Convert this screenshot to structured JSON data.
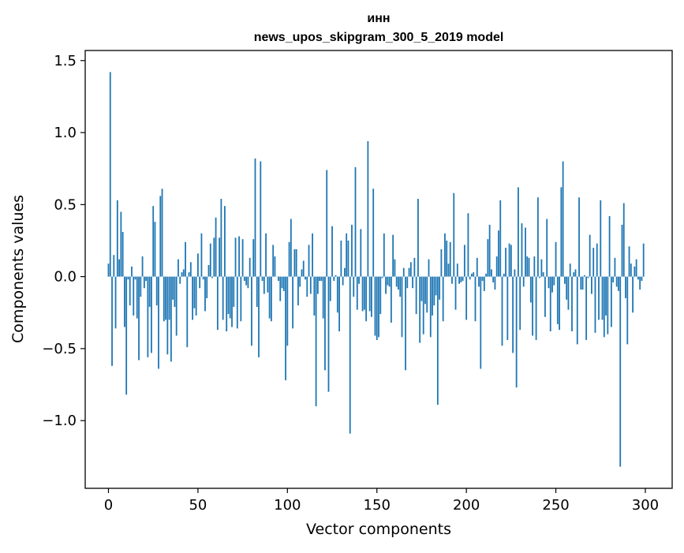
{
  "chart_data": {
    "type": "bar",
    "title_line1": "инн",
    "title_line2": "news_upos_skipgram_300_5_2019 model",
    "xlabel": "Vector components",
    "ylabel": "Components values",
    "xlim": [
      -13,
      315
    ],
    "ylim": [
      -1.47,
      1.57
    ],
    "xticks": [
      0,
      50,
      100,
      150,
      200,
      250,
      300
    ],
    "yticks": [
      1.5,
      1.0,
      0.5,
      0.0,
      -0.5,
      -1.0
    ],
    "ytick_labels": [
      "1.5",
      "1.0",
      "0.5",
      "0.0",
      "−0.5",
      "−1.0"
    ],
    "bar_color": "#1f77b4",
    "grid": false,
    "values": [
      0.09,
      1.42,
      -0.62,
      0.15,
      -0.36,
      0.53,
      0.12,
      0.45,
      0.31,
      -0.35,
      -0.82,
      -0.02,
      -0.2,
      0.07,
      -0.27,
      -0.02,
      -0.29,
      -0.58,
      -0.14,
      0.14,
      -0.08,
      -0.03,
      -0.56,
      -0.21,
      -0.53,
      0.49,
      0.38,
      -0.2,
      -0.64,
      0.56,
      0.61,
      -0.31,
      -0.3,
      -0.54,
      -0.3,
      -0.59,
      -0.16,
      -0.21,
      -0.41,
      0.12,
      -0.05,
      0.03,
      0.05,
      0.24,
      -0.49,
      0.03,
      0.1,
      -0.3,
      -0.22,
      -0.27,
      0.16,
      -0.08,
      0.3,
      -0.02,
      -0.24,
      -0.15,
      0.08,
      0.23,
      -0.01,
      0.27,
      0.41,
      -0.37,
      0.27,
      0.54,
      -0.3,
      0.49,
      -0.38,
      -0.26,
      -0.29,
      -0.35,
      -0.21,
      0.27,
      -0.36,
      0.28,
      -0.31,
      0.26,
      -0.03,
      -0.06,
      -0.08,
      0.13,
      -0.48,
      0.26,
      0.82,
      -0.21,
      -0.56,
      0.8,
      -0.03,
      -0.12,
      0.3,
      -0.11,
      -0.29,
      -0.31,
      0.22,
      0.14,
      0.0,
      -0.03,
      -0.17,
      -0.08,
      -0.1,
      -0.72,
      -0.48,
      0.24,
      0.4,
      -0.36,
      0.19,
      0.19,
      -0.2,
      -0.07,
      0.05,
      0.11,
      -0.02,
      -0.14,
      0.22,
      -0.12,
      0.3,
      -0.27,
      -0.9,
      -0.12,
      -0.03,
      -0.03,
      -0.29,
      -0.65,
      0.74,
      -0.8,
      -0.17,
      0.35,
      -0.03,
      0.01,
      -0.25,
      -0.38,
      0.25,
      -0.06,
      0.06,
      0.3,
      0.25,
      -1.09,
      0.36,
      -0.14,
      0.76,
      -0.23,
      -0.05,
      0.33,
      -0.24,
      -0.23,
      -0.31,
      0.94,
      -0.24,
      -0.28,
      0.61,
      -0.41,
      -0.44,
      -0.42,
      -0.26,
      -0.01,
      0.3,
      -0.12,
      -0.06,
      -0.07,
      -0.32,
      0.29,
      0.12,
      -0.07,
      -0.09,
      -0.14,
      -0.42,
      0.06,
      -0.65,
      -0.08,
      0.06,
      0.1,
      -0.08,
      0.13,
      -0.26,
      0.54,
      -0.46,
      -0.17,
      -0.4,
      -0.19,
      -0.25,
      0.12,
      -0.42,
      -0.27,
      -0.2,
      -0.13,
      -0.89,
      -0.16,
      0.19,
      -0.31,
      0.3,
      0.25,
      0.09,
      0.24,
      -0.05,
      0.58,
      -0.23,
      0.09,
      -0.05,
      -0.04,
      -0.03,
      0.22,
      -0.3,
      0.44,
      -0.02,
      0.02,
      0.03,
      -0.31,
      0.13,
      -0.07,
      -0.64,
      -0.03,
      -0.1,
      0.02,
      0.26,
      0.36,
      0.05,
      -0.04,
      -0.09,
      0.14,
      0.32,
      0.53,
      -0.48,
      0.02,
      0.2,
      -0.44,
      0.23,
      0.22,
      -0.53,
      0.05,
      -0.77,
      0.62,
      -0.37,
      0.37,
      -0.07,
      0.34,
      0.14,
      0.13,
      -0.18,
      -0.41,
      0.14,
      -0.44,
      0.55,
      -0.01,
      0.12,
      0.03,
      -0.28,
      0.4,
      -0.08,
      -0.38,
      -0.11,
      -0.06,
      0.24,
      -0.33,
      -0.37,
      0.62,
      0.8,
      -0.05,
      -0.16,
      -0.23,
      0.09,
      -0.38,
      0.03,
      0.05,
      -0.47,
      0.55,
      -0.09,
      -0.09,
      0.01,
      -0.44,
      -0.01,
      0.29,
      -0.12,
      0.2,
      -0.39,
      0.23,
      -0.3,
      0.53,
      -0.3,
      -0.42,
      -0.27,
      -0.4,
      0.42,
      -0.35,
      -0.04,
      0.13,
      -0.07,
      -0.1,
      -1.32,
      0.36,
      0.51,
      -0.15,
      -0.47,
      0.21,
      0.09,
      -0.25,
      0.07,
      0.12,
      -0.02,
      -0.09,
      -0.03,
      0.23
    ]
  }
}
